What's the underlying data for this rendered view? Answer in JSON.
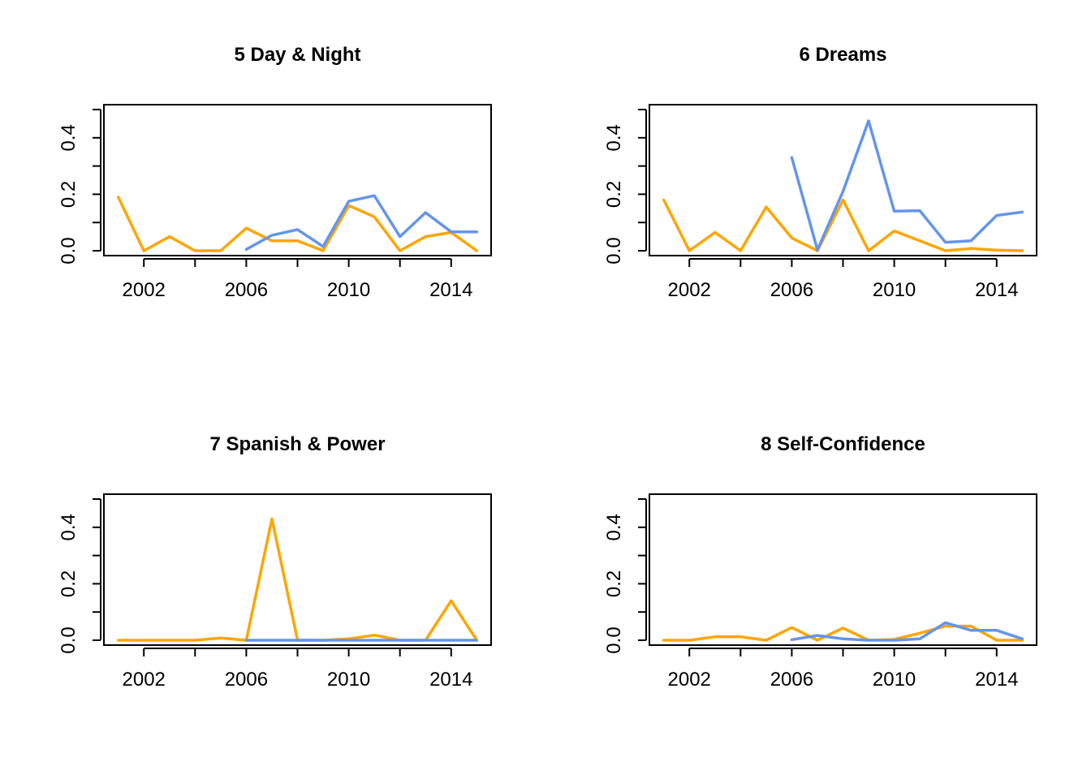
{
  "colors": {
    "orange": "#FFA500",
    "blue": "#6495ED",
    "ink": "#000000",
    "background": "#FFFFFF"
  },
  "chart_data": [
    {
      "type": "line",
      "title": "5 Day & Night",
      "xlabel": "",
      "ylabel": "",
      "xlim": [
        2000.44,
        2015.56
      ],
      "ylim": [
        0,
        0.5
      ],
      "x_ticks": [
        2002,
        2006,
        2010,
        2014
      ],
      "x_minor_ticks": [
        2002,
        2004,
        2006,
        2008,
        2010,
        2012,
        2014
      ],
      "y_ticks": [
        0.0,
        0.2,
        0.4
      ],
      "y_tick_labels": [
        "0.0",
        "0.2",
        "0.4"
      ],
      "y_minor_ticks": [
        0.0,
        0.1,
        0.2,
        0.3,
        0.4,
        0.5
      ],
      "grid": false,
      "series": [
        {
          "color": "#FFA500",
          "points": [
            [
              2001,
              0.19
            ],
            [
              2002,
              0.0
            ],
            [
              2003,
              0.05
            ],
            [
              2004,
              0.0
            ],
            [
              2005,
              0.0
            ],
            [
              2006,
              0.08
            ],
            [
              2007,
              0.035
            ],
            [
              2008,
              0.035
            ],
            [
              2009,
              0.0
            ],
            [
              2010,
              0.16
            ],
            [
              2011,
              0.12
            ],
            [
              2012,
              0.0
            ],
            [
              2013,
              0.05
            ],
            [
              2014,
              0.065
            ],
            [
              2015,
              0.0
            ]
          ]
        },
        {
          "color": "#6495ED",
          "points": [
            [
              2006,
              0.005
            ],
            [
              2007,
              0.055
            ],
            [
              2008,
              0.075
            ],
            [
              2009,
              0.015
            ],
            [
              2010,
              0.175
            ],
            [
              2011,
              0.195
            ],
            [
              2012,
              0.05
            ],
            [
              2013,
              0.135
            ],
            [
              2014,
              0.067
            ],
            [
              2015,
              0.067
            ]
          ]
        }
      ]
    },
    {
      "type": "line",
      "title": "6 Dreams",
      "xlabel": "",
      "ylabel": "",
      "xlim": [
        2000.44,
        2015.56
      ],
      "ylim": [
        0,
        0.5
      ],
      "x_ticks": [
        2002,
        2006,
        2010,
        2014
      ],
      "x_minor_ticks": [
        2002,
        2004,
        2006,
        2008,
        2010,
        2012,
        2014
      ],
      "y_ticks": [
        0.0,
        0.2,
        0.4
      ],
      "y_tick_labels": [
        "0.0",
        "0.2",
        "0.4"
      ],
      "y_minor_ticks": [
        0.0,
        0.1,
        0.2,
        0.3,
        0.4,
        0.5
      ],
      "grid": false,
      "series": [
        {
          "color": "#FFA500",
          "points": [
            [
              2001,
              0.18
            ],
            [
              2002,
              0.0
            ],
            [
              2003,
              0.065
            ],
            [
              2004,
              0.0
            ],
            [
              2005,
              0.155
            ],
            [
              2006,
              0.045
            ],
            [
              2007,
              0.0
            ],
            [
              2008,
              0.18
            ],
            [
              2009,
              0.0
            ],
            [
              2010,
              0.07
            ],
            [
              2011,
              0.035
            ],
            [
              2012,
              0.0
            ],
            [
              2013,
              0.008
            ],
            [
              2014,
              0.002
            ],
            [
              2015,
              0.0
            ]
          ]
        },
        {
          "color": "#6495ED",
          "points": [
            [
              2006,
              0.33
            ],
            [
              2007,
              0.003
            ],
            [
              2008,
              0.21
            ],
            [
              2009,
              0.46
            ],
            [
              2010,
              0.14
            ],
            [
              2011,
              0.142
            ],
            [
              2012,
              0.03
            ],
            [
              2013,
              0.035
            ],
            [
              2014,
              0.125
            ],
            [
              2015,
              0.137
            ]
          ]
        }
      ]
    },
    {
      "type": "line",
      "title": "7 Spanish & Power",
      "xlabel": "",
      "ylabel": "",
      "xlim": [
        2000.44,
        2015.56
      ],
      "ylim": [
        0,
        0.5
      ],
      "x_ticks": [
        2002,
        2006,
        2010,
        2014
      ],
      "x_minor_ticks": [
        2002,
        2004,
        2006,
        2008,
        2010,
        2012,
        2014
      ],
      "y_ticks": [
        0.0,
        0.2,
        0.4
      ],
      "y_tick_labels": [
        "0.0",
        "0.2",
        "0.4"
      ],
      "y_minor_ticks": [
        0.0,
        0.1,
        0.2,
        0.3,
        0.4,
        0.5
      ],
      "grid": false,
      "series": [
        {
          "color": "#FFA500",
          "points": [
            [
              2001,
              0.0
            ],
            [
              2002,
              0.0
            ],
            [
              2003,
              0.0
            ],
            [
              2004,
              0.0
            ],
            [
              2005,
              0.008
            ],
            [
              2006,
              0.0
            ],
            [
              2007,
              0.43
            ],
            [
              2008,
              0.0
            ],
            [
              2009,
              0.0
            ],
            [
              2010,
              0.005
            ],
            [
              2011,
              0.018
            ],
            [
              2012,
              0.0
            ],
            [
              2013,
              0.0
            ],
            [
              2014,
              0.14
            ],
            [
              2015,
              0.0
            ]
          ]
        },
        {
          "color": "#6495ED",
          "points": [
            [
              2006,
              0.0
            ],
            [
              2007,
              0.0
            ],
            [
              2008,
              0.0
            ],
            [
              2009,
              0.0
            ],
            [
              2010,
              0.0
            ],
            [
              2011,
              0.0
            ],
            [
              2012,
              0.0
            ],
            [
              2013,
              0.0
            ],
            [
              2014,
              0.0
            ],
            [
              2015,
              0.0
            ]
          ]
        }
      ]
    },
    {
      "type": "line",
      "title": "8 Self-Confidence",
      "xlabel": "",
      "ylabel": "",
      "xlim": [
        2000.44,
        2015.56
      ],
      "ylim": [
        0,
        0.5
      ],
      "x_ticks": [
        2002,
        2006,
        2010,
        2014
      ],
      "x_minor_ticks": [
        2002,
        2004,
        2006,
        2008,
        2010,
        2012,
        2014
      ],
      "y_ticks": [
        0.0,
        0.2,
        0.4
      ],
      "y_tick_labels": [
        "0.0",
        "0.2",
        "0.4"
      ],
      "y_minor_ticks": [
        0.0,
        0.1,
        0.2,
        0.3,
        0.4,
        0.5
      ],
      "grid": false,
      "series": [
        {
          "color": "#FFA500",
          "points": [
            [
              2001,
              0.0
            ],
            [
              2002,
              0.0
            ],
            [
              2003,
              0.012
            ],
            [
              2004,
              0.012
            ],
            [
              2005,
              0.0
            ],
            [
              2006,
              0.045
            ],
            [
              2007,
              0.0
            ],
            [
              2008,
              0.043
            ],
            [
              2009,
              0.0
            ],
            [
              2010,
              0.003
            ],
            [
              2011,
              0.025
            ],
            [
              2012,
              0.05
            ],
            [
              2013,
              0.05
            ],
            [
              2014,
              0.0
            ],
            [
              2015,
              0.0
            ]
          ]
        },
        {
          "color": "#6495ED",
          "points": [
            [
              2006,
              0.002
            ],
            [
              2007,
              0.017
            ],
            [
              2008,
              0.005
            ],
            [
              2009,
              0.0
            ],
            [
              2010,
              0.0
            ],
            [
              2011,
              0.005
            ],
            [
              2012,
              0.062
            ],
            [
              2013,
              0.035
            ],
            [
              2014,
              0.035
            ],
            [
              2015,
              0.005
            ]
          ]
        }
      ]
    }
  ]
}
